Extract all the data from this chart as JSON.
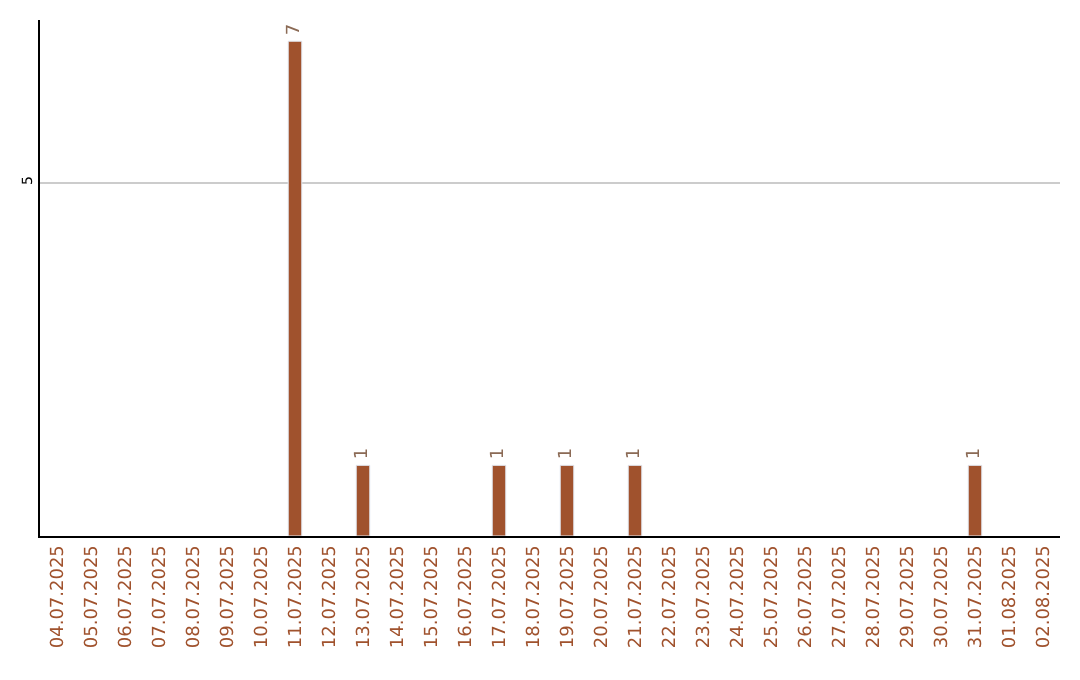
{
  "chart_data": {
    "type": "bar",
    "categories": [
      "04.07.2025",
      "05.07.2025",
      "06.07.2025",
      "07.07.2025",
      "08.07.2025",
      "09.07.2025",
      "10.07.2025",
      "11.07.2025",
      "12.07.2025",
      "13.07.2025",
      "14.07.2025",
      "15.07.2025",
      "16.07.2025",
      "17.07.2025",
      "18.07.2025",
      "19.07.2025",
      "20.07.2025",
      "21.07.2025",
      "22.07.2025",
      "23.07.2025",
      "24.07.2025",
      "25.07.2025",
      "26.07.2025",
      "27.07.2025",
      "28.07.2025",
      "29.07.2025",
      "30.07.2025",
      "31.07.2025",
      "01.08.2025",
      "02.08.2025"
    ],
    "values": [
      null,
      null,
      null,
      null,
      null,
      null,
      null,
      7,
      null,
      1,
      null,
      null,
      null,
      1,
      null,
      1,
      null,
      1,
      null,
      null,
      null,
      null,
      null,
      null,
      null,
      null,
      null,
      1,
      null,
      null
    ],
    "data_labels": true,
    "color": "#a0522d",
    "ylim": [
      0,
      7.3
    ],
    "yticks": [
      {
        "value": 0,
        "label": null
      },
      5
    ],
    "grid": "y"
  }
}
